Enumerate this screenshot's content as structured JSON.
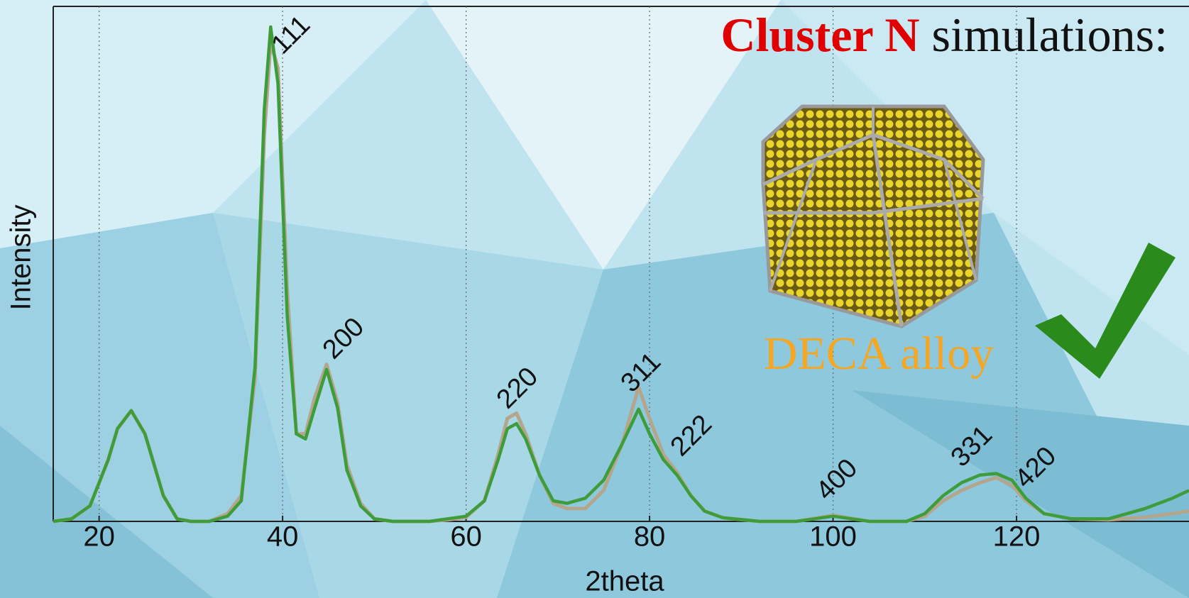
{
  "chart_data": {
    "type": "line",
    "title": {
      "highlight": "Cluster N",
      "text": "simulations:"
    },
    "annotation": "DECA alloy",
    "peak_labels": [
      "111",
      "200",
      "220",
      "311",
      "222",
      "400",
      "331",
      "420"
    ],
    "x_label": "2theta",
    "y_label": "Intensity",
    "xlim": [
      15,
      138.8
    ],
    "xticks": [
      20,
      40,
      60,
      80,
      100,
      120
    ],
    "ylim": [
      0,
      100
    ],
    "grid": true,
    "x": [
      15,
      17,
      19,
      21,
      22,
      23.5,
      25,
      27,
      28.5,
      30,
      32,
      34,
      35.5,
      37,
      38,
      38.7,
      39.5,
      40.5,
      41.5,
      42.5,
      43.5,
      44.8,
      46,
      47,
      48.5,
      50,
      52,
      56,
      58,
      60,
      62,
      63.5,
      64.5,
      65.5,
      66.5,
      68,
      69.5,
      71,
      73,
      75,
      77,
      78.8,
      80,
      81.5,
      83,
      84.5,
      86,
      88,
      92,
      96,
      100,
      104,
      108,
      110,
      112,
      114,
      116,
      117.8,
      119.5,
      121,
      123,
      126,
      130,
      134,
      137,
      138.8
    ],
    "series": [
      {
        "color": "#b3a68c",
        "values": [
          0,
          0.5,
          3,
          12,
          18,
          21.5,
          17,
          5,
          0.5,
          0,
          0,
          1.5,
          5,
          28,
          75,
          93,
          88,
          45,
          17,
          17,
          24,
          30.5,
          23,
          11,
          3.5,
          0.5,
          0,
          0,
          0.3,
          0.8,
          4,
          13,
          20,
          21,
          17,
          9,
          3.5,
          2.5,
          2.5,
          6,
          15,
          26,
          20,
          13,
          9.5,
          5,
          2,
          0.7,
          0,
          0,
          1.2,
          0,
          0,
          1,
          4,
          6,
          7.5,
          8.5,
          7,
          4,
          1.5,
          0.5,
          0.3,
          0.8,
          1.5,
          2
        ]
      },
      {
        "color": "#3f9c3a",
        "values": [
          0,
          0.5,
          3,
          12,
          18,
          21.5,
          17,
          5,
          0.5,
          0,
          0,
          1,
          4,
          30,
          80,
          96,
          85,
          40,
          17,
          16,
          22,
          29.5,
          22,
          10,
          3,
          0.5,
          0,
          0,
          0.5,
          1,
          4,
          12,
          18,
          19,
          16,
          9,
          4,
          3.5,
          4.5,
          8,
          15,
          21.8,
          17,
          12,
          9,
          5,
          2,
          0.7,
          0,
          0,
          1,
          0,
          0,
          1.5,
          5,
          7.5,
          9,
          9.3,
          8,
          4.5,
          1.5,
          0.5,
          0.5,
          2.5,
          4.5,
          6
        ]
      }
    ]
  }
}
